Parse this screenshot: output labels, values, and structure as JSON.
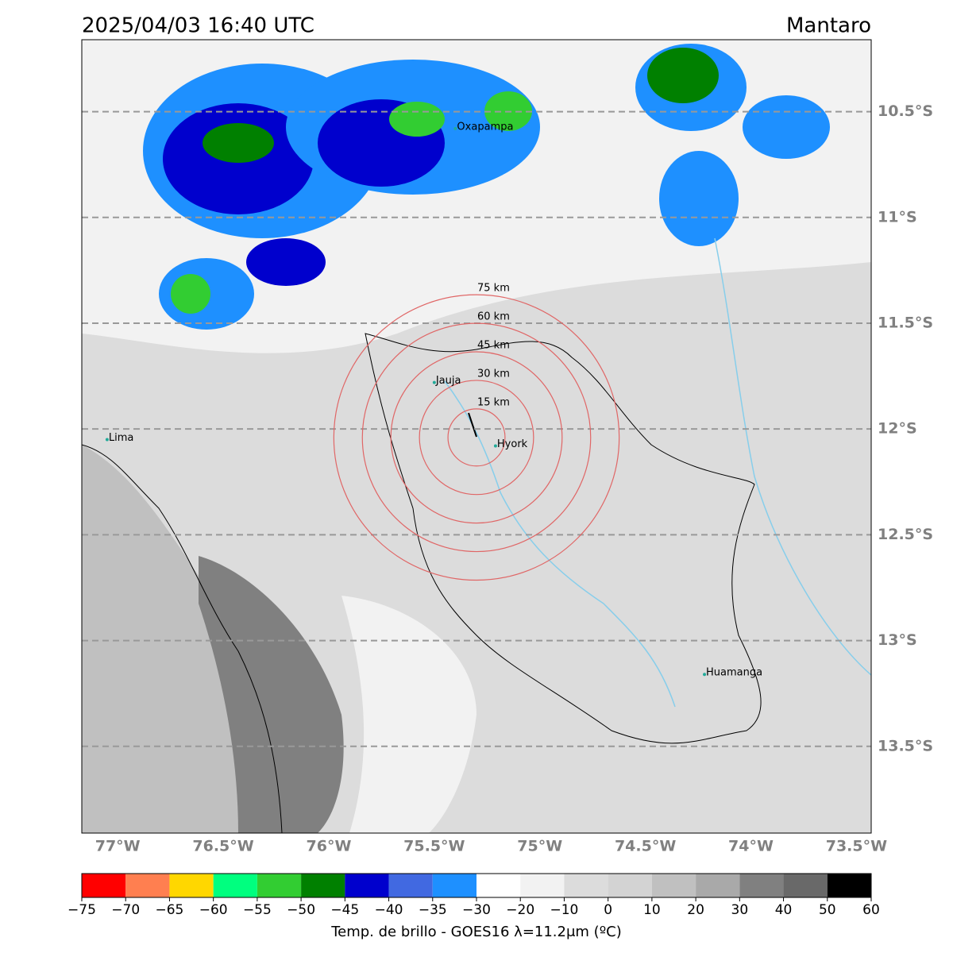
{
  "title_left": "2025/04/03 16:40 UTC",
  "title_right": "Mantaro",
  "lon_range": [
    -77.17,
    -73.43
  ],
  "lat_range": [
    -13.91,
    -10.16
  ],
  "lon_ticks": [
    {
      "value": -77,
      "label": "77°W"
    },
    {
      "value": -76.5,
      "label": "76.5°W"
    },
    {
      "value": -76,
      "label": "76°W"
    },
    {
      "value": -75.5,
      "label": "75.5°W"
    },
    {
      "value": -75,
      "label": "75°W"
    },
    {
      "value": -74.5,
      "label": "74.5°W"
    },
    {
      "value": -74,
      "label": "74°W"
    },
    {
      "value": -73.5,
      "label": "73.5°W"
    }
  ],
  "lat_ticks": [
    {
      "value": -10.5,
      "label": "10.5°S"
    },
    {
      "value": -11,
      "label": "11°S"
    },
    {
      "value": -11.5,
      "label": "11.5°S"
    },
    {
      "value": -12,
      "label": "12°S"
    },
    {
      "value": -12.5,
      "label": "12.5°S"
    },
    {
      "value": -13,
      "label": "13°S"
    },
    {
      "value": -13.5,
      "label": "13.5°S"
    }
  ],
  "rings": {
    "center": [
      -75.3,
      -12.04
    ],
    "radii_km": [
      15,
      30,
      45,
      60,
      75
    ],
    "labels": [
      "15 km",
      "30 km",
      "45 km",
      "60 km",
      "75 km"
    ],
    "color": "#e06666"
  },
  "cities": [
    {
      "name": "Lima",
      "lon": -77.05,
      "lat": -12.05
    },
    {
      "name": "Jauja",
      "lon": -75.5,
      "lat": -11.78
    },
    {
      "name": "Hyork",
      "lon": -75.21,
      "lat": -12.08
    },
    {
      "name": "Huamanga",
      "lon": -74.22,
      "lat": -13.16
    },
    {
      "name": "Oxapampa",
      "lon": -75.4,
      "lat": -10.58
    }
  ],
  "colorbar": {
    "ticks": [
      {
        "value": -75,
        "label": "−75"
      },
      {
        "value": -70,
        "label": "−70"
      },
      {
        "value": -65,
        "label": "−65"
      },
      {
        "value": -60,
        "label": "−60"
      },
      {
        "value": -55,
        "label": "−55"
      },
      {
        "value": -50,
        "label": "−50"
      },
      {
        "value": -45,
        "label": "−45"
      },
      {
        "value": -40,
        "label": "−40"
      },
      {
        "value": -35,
        "label": "−35"
      },
      {
        "value": -30,
        "label": "−30"
      },
      {
        "value": -20,
        "label": "−20"
      },
      {
        "value": -10,
        "label": "−10"
      },
      0,
      10,
      20,
      30,
      40,
      50,
      60
    ],
    "colors": [
      "#ff0000",
      "#ff7f50",
      "#ffd700",
      "#00ff7f",
      "#32cd32",
      "#008000",
      "#0000cd",
      "#4169e1",
      "#1e90ff",
      "#ffffff",
      "#f2f2f2",
      "#dcdcdc",
      "#d3d3d3",
      "#c0c0c0",
      "#a9a9a9",
      "#808080",
      "#696969",
      "#000000"
    ],
    "label": "Temp. de brillo - GOES16 λ=11.2μm (ºC)"
  }
}
